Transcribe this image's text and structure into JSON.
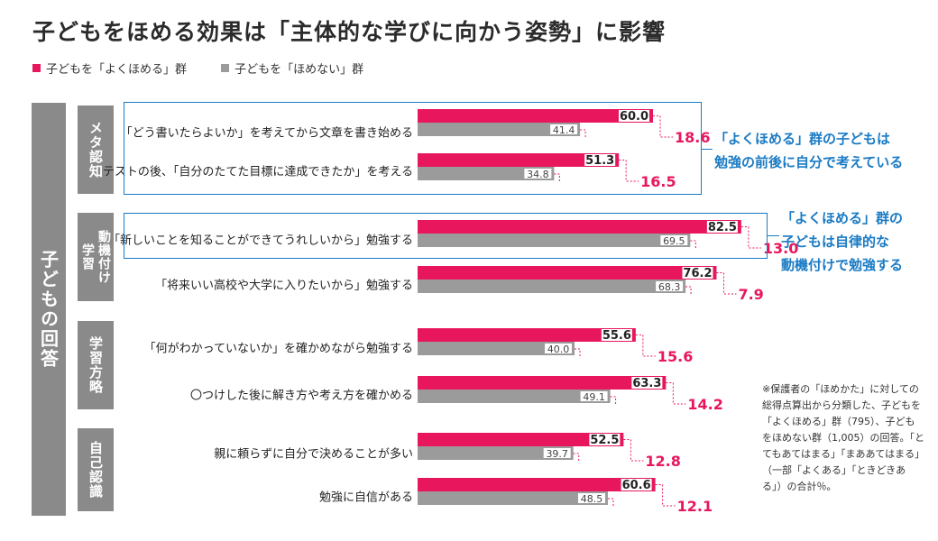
{
  "title": "子どもをほめる効果は「主体的な学びに向かう姿勢」に影響",
  "legend": [
    {
      "label": "子どもを「よくほめる」群",
      "color": "#e8175d"
    },
    {
      "label": "子どもを「ほめない」群",
      "color": "#9b9b9b"
    }
  ],
  "side_label": "子どもの回答",
  "categories": [
    {
      "label": "メタ認知"
    },
    {
      "label": "学習動機付け",
      "lines": [
        "学習",
        "動機付け"
      ]
    },
    {
      "label": "学習方略"
    },
    {
      "label": "自己認識"
    }
  ],
  "callouts": {
    "meta": [
      "「よくほめる」群の子どもは",
      "勉強の前後に自分で考えている"
    ],
    "motivation": [
      "「よくほめる」群の",
      "子どもは自律的な",
      "動機付けで勉強する"
    ]
  },
  "note": "※保護者の「ほめかた」に対しての総得点算出から分類した、子どもを「よくほめる」群（795）、子どもをほめない群（1,005）の回答。「とてもあてはまる」「まああてはまる」（一部「よくある」「ときどきある」）の合計％。",
  "chart_data": {
    "type": "bar",
    "orientation": "horizontal",
    "unit": "%",
    "categories": [
      "「どう書いたらよいか」を考えてから文章を書き始める",
      "テストの後、「自分のたてた目標に達成できたか」を考える",
      "「新しいことを知ることができてうれしいから」勉強する",
      "「将来いい高校や大学に入りたいから」勉強する",
      "「何がわかっていないか」を確かめながら勉強する",
      "〇つけした後に解き方や考え方を確かめる",
      "親に頼らずに自分で決めることが多い",
      "勉強に自信がある"
    ],
    "groups": [
      "メタ認知",
      "メタ認知",
      "学習動機付け",
      "学習動機付け",
      "学習方略",
      "学習方略",
      "自己認識",
      "自己認識"
    ],
    "series": [
      {
        "name": "子どもを「よくほめる」群",
        "color": "#e8175d",
        "values": [
          60.0,
          51.3,
          82.5,
          76.2,
          55.6,
          63.3,
          52.5,
          60.6
        ]
      },
      {
        "name": "子どもを「ほめない」群",
        "color": "#9b9b9b",
        "values": [
          41.4,
          34.8,
          69.5,
          68.3,
          40.0,
          49.1,
          39.7,
          48.5
        ]
      }
    ],
    "differences": [
      18.6,
      16.5,
      13.0,
      7.9,
      15.6,
      14.2,
      12.8,
      12.1
    ],
    "xlim": [
      0,
      100
    ]
  }
}
